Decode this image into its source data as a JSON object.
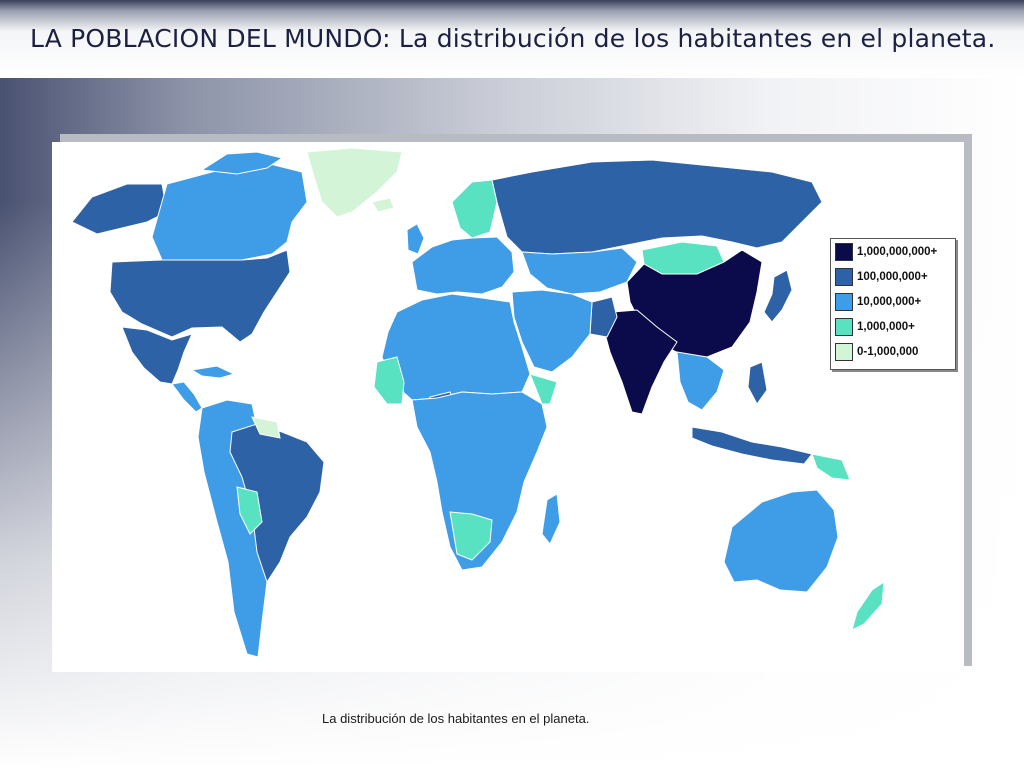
{
  "slide": {
    "title": "LA POBLACION DEL MUNDO: La distribución de los habitantes en el planeta.",
    "caption": "La distribución de los habitantes en el planeta."
  },
  "map": {
    "legend": [
      {
        "label": "1,000,000,000+",
        "color": "#0b0a4a"
      },
      {
        "label": "100,000,000+",
        "color": "#2e62a6"
      },
      {
        "label": "10,000,000+",
        "color": "#3f9ce6"
      },
      {
        "label": "1,000,000+",
        "color": "#58e2c1"
      },
      {
        "label": "0-1,000,000",
        "color": "#d3f4d6"
      }
    ],
    "colors": {
      "ocean": "#ffffff",
      "border": "#7fb4ea"
    }
  }
}
